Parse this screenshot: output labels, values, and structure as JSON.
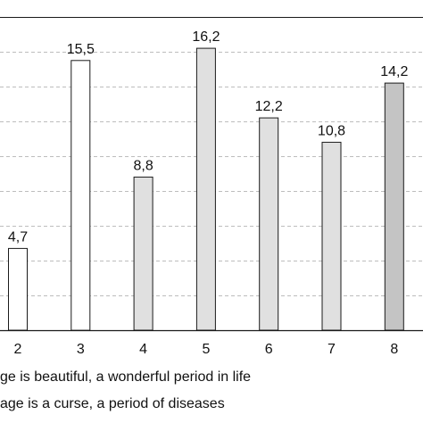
{
  "chart_data": {
    "type": "bar",
    "categories": [
      "2",
      "3",
      "4",
      "5",
      "6",
      "7",
      "8"
    ],
    "values": [
      4.7,
      15.5,
      8.8,
      16.2,
      12.2,
      10.8,
      14.2
    ],
    "value_labels": [
      "4,7",
      "15,5",
      "8,8",
      "16,2",
      "12,2",
      "10,8",
      "14,2"
    ],
    "bar_colors": [
      "#ffffff",
      "#ffffff",
      "#e0e0e0",
      "#e0e0e0",
      "#e0e0e0",
      "#e0e0e0",
      "#c4c4c4"
    ],
    "ylim": [
      0,
      18
    ],
    "grid": true,
    "title": "",
    "xlabel": "",
    "ylabel": ""
  },
  "legend": {
    "line1": "ge is beautiful, a wonderful period in life",
    "line2": "age is a curse, a period of diseases"
  }
}
